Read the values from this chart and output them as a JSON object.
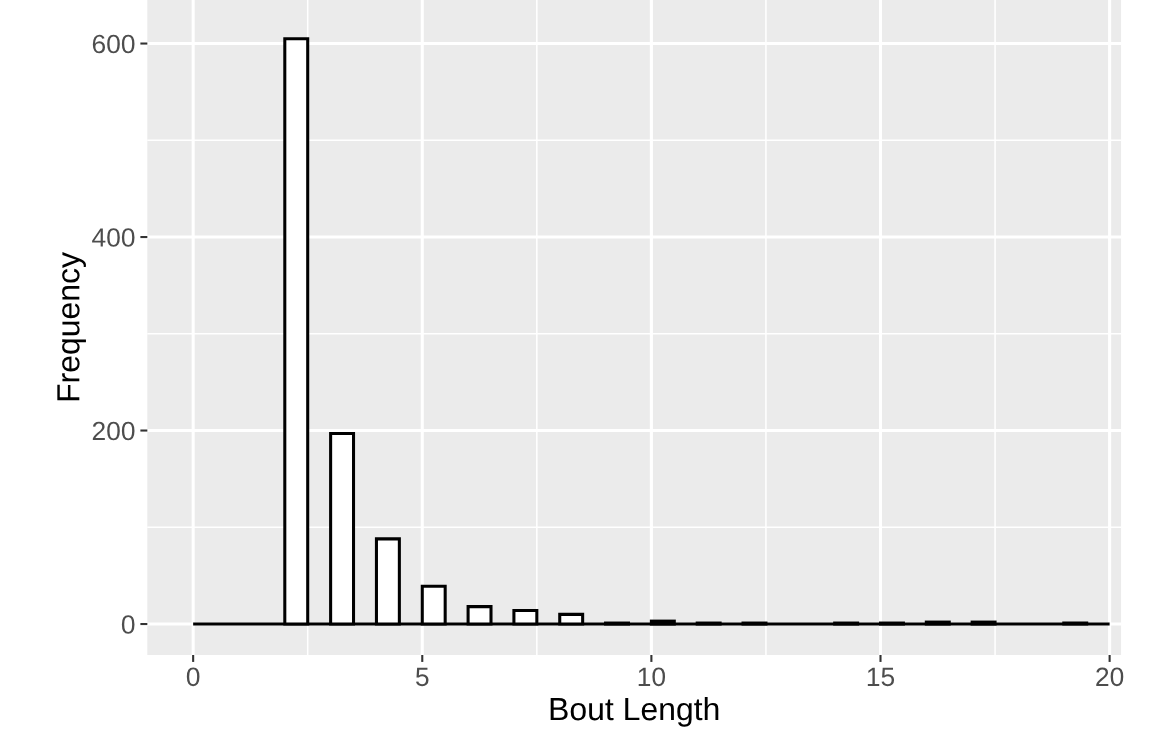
{
  "chart_data": {
    "type": "histogram",
    "xlabel": "Bout Length",
    "ylabel": "Frequency",
    "bins": [
      0,
      0.5,
      1,
      1.5,
      2,
      2.5,
      3,
      3.5,
      4,
      4.5,
      5,
      5.5,
      6,
      6.5,
      7,
      7.5,
      8,
      8.5,
      9,
      9.5,
      10,
      10.5,
      11,
      11.5,
      12,
      12.5,
      13,
      13.5,
      14,
      14.5,
      15,
      15.5,
      16,
      16.5,
      17,
      17.5,
      18,
      18.5,
      19,
      19.5,
      20
    ],
    "values": [
      0,
      0,
      0,
      0,
      605,
      0,
      197,
      0,
      88,
      0,
      39,
      0,
      18,
      0,
      14,
      0,
      10,
      0,
      1,
      0,
      3,
      0,
      1,
      0,
      1,
      0,
      0,
      0,
      1,
      0,
      1,
      0,
      2,
      0,
      2,
      0,
      0,
      0,
      1,
      0
    ],
    "color": "#ffffff",
    "xlim": [
      -1,
      20.25
    ],
    "ylim": [
      -32,
      645
    ],
    "xticks": [
      0,
      5,
      10,
      15,
      20
    ],
    "yticks": [
      0,
      200,
      400,
      600
    ],
    "grid": true
  }
}
